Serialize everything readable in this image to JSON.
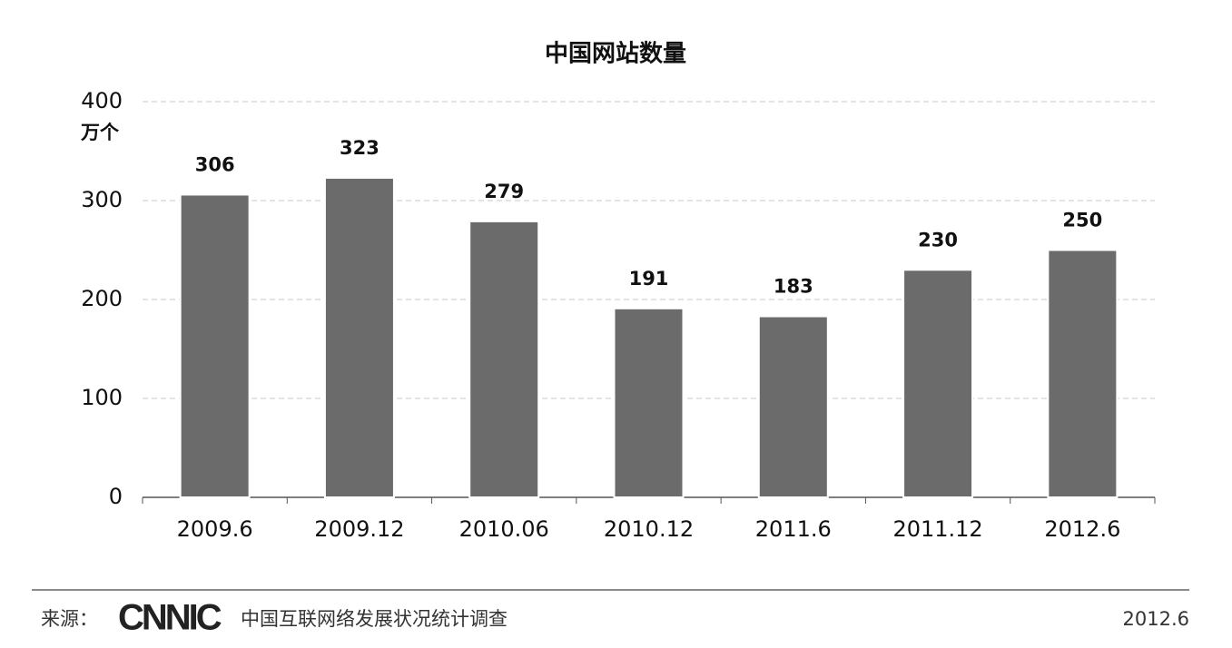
{
  "chart_data": {
    "type": "bar",
    "title": "中国网站数量",
    "y_unit": "万个",
    "categories": [
      "2009.6",
      "2009.12",
      "2010.06",
      "2010.12",
      "2011.6",
      "2011.12",
      "2012.6"
    ],
    "values": [
      306,
      323,
      279,
      191,
      183,
      230,
      250
    ],
    "color": "#6b6b6b",
    "ylim": [
      0,
      400
    ],
    "yticks": [
      0,
      100,
      200,
      300,
      400
    ],
    "grid": true
  },
  "footer": {
    "source_label": "来源：",
    "logo": "CNNIC",
    "source": "中国互联网络发展状况统计调查",
    "date": "2012.6"
  }
}
